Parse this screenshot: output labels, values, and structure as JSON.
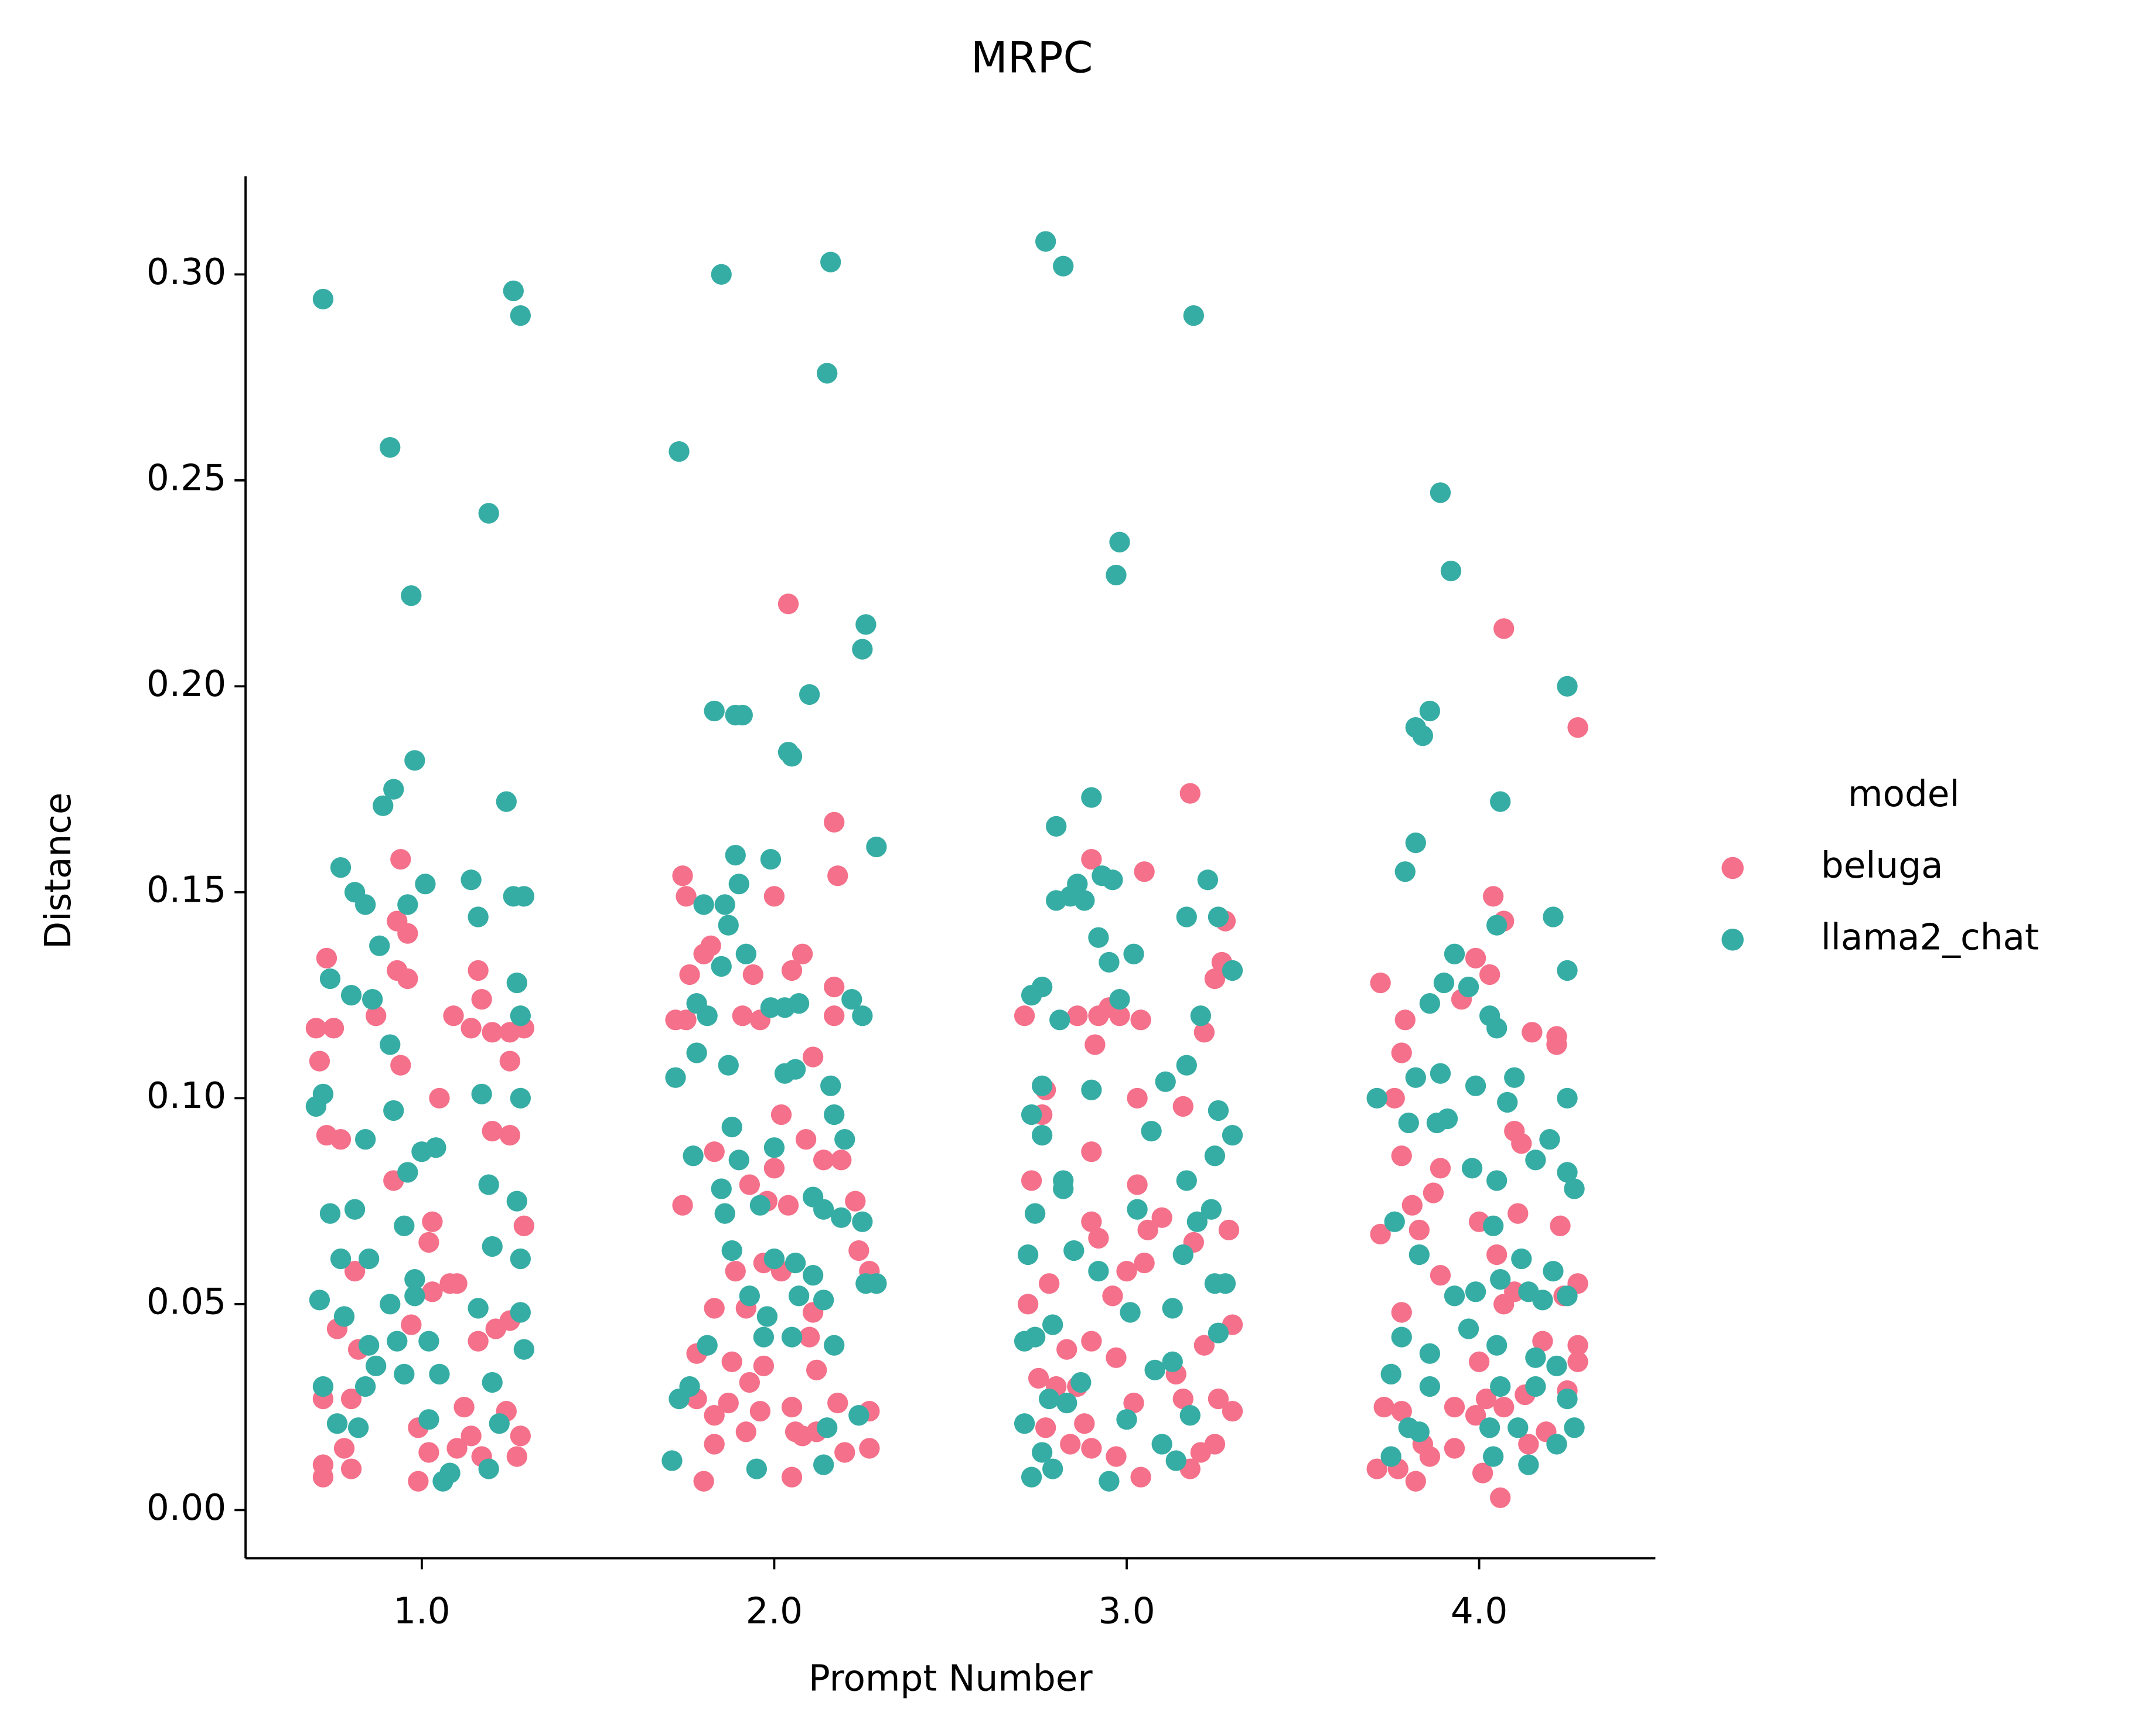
{
  "chart_data": {
    "type": "scatter",
    "title": "MRPC",
    "x_label": "Prompt Number",
    "y_label": "Distance",
    "legend_title": "model",
    "legend_position": "right",
    "xlim": [
      0.5,
      4.5
    ],
    "xticks": [
      {
        "value": 1,
        "label": "1.0"
      },
      {
        "value": 2,
        "label": "2.0"
      },
      {
        "value": 3,
        "label": "3.0"
      },
      {
        "value": 4,
        "label": "4.0"
      }
    ],
    "ylim": [
      -0.0117,
      0.3238
    ],
    "yticks": [
      {
        "value": 0,
        "label": "0.00"
      },
      0.05,
      {
        "value": 0.1,
        "label": "0.10"
      },
      0.15,
      {
        "value": 0.2,
        "label": "0.20"
      },
      0.25,
      {
        "value": 0.3,
        "label": "0.30"
      }
    ],
    "grid": false,
    "series": [
      {
        "name": "beluga",
        "color": "#f5708a",
        "x": [
          0.73,
          0.7,
          0.75,
          0.71,
          0.73,
          0.77,
          0.94,
          0.93,
          0.96,
          0.93,
          0.96,
          0.87,
          0.94,
          0.92,
          1.09,
          1.16,
          1.17,
          1.14,
          1.2,
          1.25,
          1.25,
          1.29,
          1.05,
          1.2,
          1.25,
          1.03,
          1.29,
          1.02,
          0.81,
          0.76,
          0.82,
          0.97,
          1.08,
          1.1,
          1.03,
          1.16,
          1.21,
          1.25,
          0.72,
          0.8,
          0.78,
          0.72,
          0.72,
          0.8,
          0.99,
          0.99,
          1.02,
          1.1,
          1.12,
          1.14,
          1.24,
          1.28,
          1.27,
          1.17,
          2.04,
          2.17,
          2.18,
          2.0,
          1.74,
          1.75,
          1.82,
          1.8,
          1.76,
          1.72,
          1.75,
          1.91,
          1.94,
          2.05,
          2.08,
          2.17,
          2.11,
          2.17,
          1.96,
          1.83,
          2.02,
          2.09,
          2.14,
          2.19,
          1.74,
          1.93,
          1.98,
          2.04,
          2.0,
          2.23,
          2.24,
          2.27,
          1.89,
          2.02,
          1.83,
          1.92,
          1.97,
          2.11,
          1.78,
          1.88,
          1.97,
          2.1,
          1.78,
          1.83,
          1.87,
          1.93,
          2.05,
          2.12,
          2.18,
          2.27,
          1.8,
          1.83,
          1.92,
          1.96,
          2.06,
          2.05,
          2.08,
          2.12,
          2.2,
          2.27,
          3.18,
          2.9,
          3.05,
          3.28,
          2.86,
          2.71,
          2.92,
          2.95,
          2.98,
          2.91,
          3.04,
          3.22,
          3.25,
          3.27,
          2.77,
          2.76,
          3.03,
          3.16,
          2.9,
          2.73,
          3.03,
          2.9,
          2.92,
          3.06,
          3.1,
          3.29,
          3.19,
          3.0,
          3.05,
          2.72,
          2.78,
          2.96,
          3.3,
          3.22,
          2.83,
          2.9,
          2.97,
          3.14,
          2.75,
          2.8,
          2.86,
          2.88,
          3.02,
          3.16,
          3.26,
          3.3,
          2.77,
          2.84,
          2.9,
          2.97,
          3.04,
          3.18,
          3.25,
          3.21,
          4.07,
          4.28,
          4.04,
          4.07,
          3.99,
          4.03,
          3.72,
          3.79,
          3.78,
          3.95,
          4.15,
          4.22,
          4.22,
          3.76,
          3.78,
          3.89,
          4.1,
          4.12,
          3.87,
          3.81,
          3.83,
          4.0,
          4.11,
          4.23,
          3.72,
          3.89,
          4.05,
          3.78,
          4.07,
          4.1,
          4.24,
          4.28,
          4.28,
          4.18,
          4.0,
          4.13,
          4.28,
          3.73,
          3.78,
          3.93,
          3.99,
          4.02,
          4.07,
          4.19,
          4.25,
          3.71,
          3.77,
          3.84,
          3.86,
          3.93,
          4.01,
          4.06,
          3.82,
          4.14
        ],
        "values": [
          0.134,
          0.117,
          0.117,
          0.109,
          0.091,
          0.09,
          0.158,
          0.143,
          0.14,
          0.131,
          0.129,
          0.12,
          0.108,
          0.08,
          0.12,
          0.131,
          0.124,
          0.117,
          0.116,
          0.116,
          0.109,
          0.117,
          0.1,
          0.092,
          0.091,
          0.07,
          0.069,
          0.065,
          0.058,
          0.044,
          0.039,
          0.045,
          0.055,
          0.055,
          0.053,
          0.041,
          0.044,
          0.046,
          0.027,
          0.027,
          0.015,
          0.011,
          0.008,
          0.01,
          0.02,
          0.007,
          0.014,
          0.015,
          0.025,
          0.018,
          0.024,
          0.018,
          0.013,
          0.013,
          0.22,
          0.167,
          0.154,
          0.149,
          0.154,
          0.149,
          0.137,
          0.135,
          0.13,
          0.119,
          0.119,
          0.12,
          0.13,
          0.131,
          0.135,
          0.127,
          0.11,
          0.12,
          0.119,
          0.087,
          0.096,
          0.09,
          0.085,
          0.085,
          0.074,
          0.079,
          0.075,
          0.074,
          0.083,
          0.075,
          0.063,
          0.058,
          0.058,
          0.058,
          0.049,
          0.049,
          0.06,
          0.048,
          0.038,
          0.036,
          0.035,
          0.042,
          0.027,
          0.023,
          0.026,
          0.031,
          0.025,
          0.034,
          0.026,
          0.024,
          0.007,
          0.016,
          0.019,
          0.024,
          0.019,
          0.008,
          0.018,
          0.019,
          0.014,
          0.015,
          0.174,
          0.158,
          0.155,
          0.143,
          0.12,
          0.12,
          0.12,
          0.122,
          0.12,
          0.113,
          0.119,
          0.116,
          0.129,
          0.133,
          0.102,
          0.096,
          0.1,
          0.098,
          0.087,
          0.08,
          0.079,
          0.07,
          0.066,
          0.068,
          0.071,
          0.068,
          0.065,
          0.058,
          0.06,
          0.05,
          0.055,
          0.052,
          0.045,
          0.04,
          0.039,
          0.041,
          0.037,
          0.033,
          0.032,
          0.03,
          0.03,
          0.021,
          0.026,
          0.027,
          0.027,
          0.024,
          0.02,
          0.016,
          0.015,
          0.013,
          0.008,
          0.01,
          0.016,
          0.014,
          0.214,
          0.19,
          0.149,
          0.143,
          0.134,
          0.13,
          0.128,
          0.119,
          0.111,
          0.124,
          0.116,
          0.115,
          0.113,
          0.1,
          0.086,
          0.083,
          0.092,
          0.089,
          0.077,
          0.074,
          0.068,
          0.07,
          0.072,
          0.069,
          0.067,
          0.057,
          0.062,
          0.048,
          0.05,
          0.053,
          0.052,
          0.055,
          0.04,
          0.041,
          0.036,
          0.028,
          0.036,
          0.025,
          0.024,
          0.025,
          0.023,
          0.027,
          0.025,
          0.019,
          0.029,
          0.01,
          0.01,
          0.016,
          0.013,
          0.015,
          0.009,
          0.003,
          0.007,
          0.016
        ]
      },
      {
        "name": "llama2_chat",
        "color": "#36ada4",
        "x": [
          0.72,
          0.91,
          0.97,
          1.19,
          1.26,
          1.28,
          0.98,
          0.92,
          0.89,
          1.24,
          0.77,
          0.81,
          0.84,
          0.96,
          1.01,
          1.14,
          1.16,
          1.26,
          1.29,
          0.88,
          0.74,
          0.8,
          0.86,
          0.91,
          1.27,
          1.28,
          0.7,
          0.72,
          0.92,
          1.17,
          1.28,
          0.84,
          1.0,
          1.04,
          1.19,
          0.96,
          0.74,
          0.81,
          0.95,
          1.27,
          0.77,
          0.85,
          0.98,
          1.2,
          1.28,
          0.71,
          0.78,
          0.91,
          0.98,
          1.16,
          1.28,
          0.85,
          0.93,
          1.02,
          1.29,
          0.87,
          0.95,
          1.05,
          1.2,
          0.72,
          0.84,
          0.76,
          0.82,
          1.02,
          1.22,
          1.06,
          1.08,
          1.19,
          1.73,
          1.85,
          2.16,
          2.15,
          2.26,
          2.25,
          1.83,
          1.89,
          1.91,
          2.1,
          2.04,
          2.05,
          2.29,
          1.89,
          1.99,
          1.9,
          1.8,
          1.87,
          1.86,
          1.78,
          1.81,
          1.85,
          1.92,
          1.99,
          2.03,
          2.07,
          2.22,
          2.25,
          1.72,
          1.78,
          1.87,
          2.03,
          2.06,
          2.16,
          1.88,
          2.0,
          2.17,
          2.2,
          1.77,
          1.9,
          1.85,
          1.86,
          1.96,
          2.11,
          2.14,
          2.19,
          2.25,
          1.88,
          2.0,
          2.06,
          2.11,
          2.26,
          2.29,
          1.93,
          1.98,
          2.07,
          2.14,
          1.97,
          2.05,
          2.17,
          1.81,
          1.76,
          1.73,
          2.15,
          2.24,
          1.71,
          1.95,
          2.14,
          2.77,
          2.82,
          3.19,
          2.98,
          2.97,
          2.8,
          2.9,
          2.8,
          2.84,
          2.88,
          2.86,
          2.93,
          2.96,
          3.17,
          3.23,
          3.26,
          2.92,
          2.95,
          3.02,
          2.73,
          2.76,
          2.81,
          2.98,
          3.21,
          3.3,
          2.76,
          2.9,
          3.11,
          3.17,
          2.73,
          2.76,
          3.07,
          3.26,
          3.25,
          3.3,
          2.82,
          2.82,
          3.17,
          2.74,
          3.03,
          3.2,
          3.24,
          2.72,
          2.85,
          2.92,
          3.16,
          3.25,
          3.28,
          2.79,
          3.01,
          3.13,
          3.26,
          2.71,
          2.74,
          2.87,
          3.08,
          3.13,
          2.78,
          2.83,
          3.0,
          3.18,
          2.71,
          2.73,
          2.76,
          2.79,
          2.95,
          3.1,
          3.14,
          3.89,
          3.92,
          4.25,
          4.06,
          3.86,
          3.82,
          3.84,
          3.82,
          3.79,
          4.21,
          4.05,
          3.93,
          3.9,
          3.86,
          3.97,
          4.25,
          4.03,
          4.05,
          3.82,
          3.89,
          3.99,
          4.1,
          3.71,
          3.8,
          3.88,
          4.08,
          4.25,
          3.91,
          3.98,
          4.05,
          4.16,
          4.2,
          4.25,
          4.27,
          3.76,
          3.83,
          4.04,
          4.12,
          3.93,
          3.99,
          4.06,
          4.14,
          4.18,
          4.21,
          4.25,
          3.78,
          3.86,
          3.97,
          4.05,
          4.16,
          4.22,
          3.75,
          3.86,
          4.06,
          4.16,
          4.25,
          3.8,
          3.83,
          4.03,
          4.11,
          4.27,
          3.75,
          4.04,
          4.14,
          4.22
        ],
        "values": [
          0.294,
          0.258,
          0.222,
          0.242,
          0.296,
          0.29,
          0.182,
          0.175,
          0.171,
          0.172,
          0.156,
          0.15,
          0.147,
          0.147,
          0.152,
          0.153,
          0.144,
          0.149,
          0.149,
          0.137,
          0.129,
          0.125,
          0.124,
          0.113,
          0.128,
          0.12,
          0.098,
          0.101,
          0.097,
          0.101,
          0.1,
          0.09,
          0.087,
          0.088,
          0.079,
          0.082,
          0.072,
          0.073,
          0.069,
          0.075,
          0.061,
          0.061,
          0.056,
          0.064,
          0.061,
          0.051,
          0.047,
          0.05,
          0.052,
          0.049,
          0.048,
          0.04,
          0.041,
          0.041,
          0.039,
          0.035,
          0.033,
          0.033,
          0.031,
          0.03,
          0.03,
          0.021,
          0.02,
          0.022,
          0.021,
          0.007,
          0.009,
          0.01,
          0.257,
          0.3,
          0.303,
          0.276,
          0.215,
          0.209,
          0.194,
          0.193,
          0.193,
          0.198,
          0.184,
          0.183,
          0.161,
          0.159,
          0.158,
          0.152,
          0.147,
          0.142,
          0.147,
          0.123,
          0.12,
          0.132,
          0.135,
          0.122,
          0.122,
          0.123,
          0.124,
          0.12,
          0.105,
          0.111,
          0.108,
          0.106,
          0.107,
          0.103,
          0.093,
          0.088,
          0.096,
          0.09,
          0.086,
          0.085,
          0.078,
          0.072,
          0.074,
          0.076,
          0.073,
          0.071,
          0.07,
          0.063,
          0.061,
          0.06,
          0.057,
          0.055,
          0.055,
          0.052,
          0.047,
          0.052,
          0.051,
          0.042,
          0.042,
          0.04,
          0.04,
          0.03,
          0.027,
          0.02,
          0.023,
          0.012,
          0.01,
          0.011,
          0.308,
          0.302,
          0.29,
          0.235,
          0.227,
          0.166,
          0.173,
          0.148,
          0.149,
          0.148,
          0.152,
          0.154,
          0.153,
          0.144,
          0.153,
          0.144,
          0.139,
          0.133,
          0.135,
          0.125,
          0.127,
          0.119,
          0.124,
          0.12,
          0.131,
          0.103,
          0.102,
          0.104,
          0.108,
          0.096,
          0.091,
          0.092,
          0.097,
          0.086,
          0.091,
          0.08,
          0.078,
          0.08,
          0.072,
          0.073,
          0.07,
          0.073,
          0.062,
          0.063,
          0.058,
          0.062,
          0.055,
          0.055,
          0.045,
          0.048,
          0.049,
          0.043,
          0.041,
          0.042,
          0.031,
          0.034,
          0.036,
          0.027,
          0.026,
          0.022,
          0.023,
          0.021,
          0.008,
          0.014,
          0.01,
          0.007,
          0.016,
          0.012,
          0.247,
          0.228,
          0.2,
          0.172,
          0.194,
          0.19,
          0.188,
          0.162,
          0.155,
          0.144,
          0.142,
          0.135,
          0.128,
          0.123,
          0.127,
          0.131,
          0.12,
          0.117,
          0.105,
          0.106,
          0.103,
          0.105,
          0.1,
          0.094,
          0.094,
          0.099,
          0.1,
          0.095,
          0.083,
          0.08,
          0.085,
          0.09,
          0.082,
          0.078,
          0.07,
          0.062,
          0.069,
          0.061,
          0.052,
          0.053,
          0.056,
          0.053,
          0.051,
          0.058,
          0.052,
          0.042,
          0.038,
          0.044,
          0.04,
          0.037,
          0.035,
          0.033,
          0.03,
          0.03,
          0.03,
          0.027,
          0.02,
          0.019,
          0.02,
          0.02,
          0.02,
          0.013,
          0.013,
          0.011,
          0.016
        ]
      }
    ]
  }
}
